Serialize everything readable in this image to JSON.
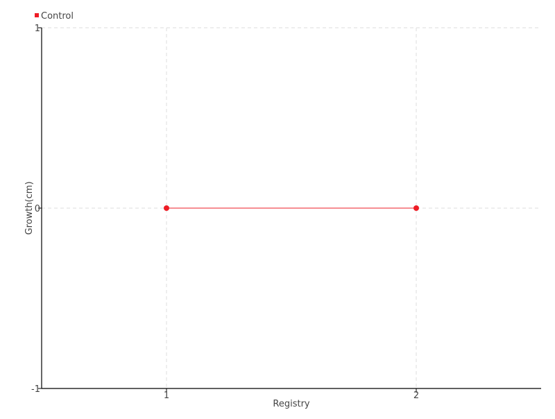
{
  "chart_data": {
    "type": "line",
    "title": "",
    "xlabel": "Registry",
    "ylabel": "Growth(cm)",
    "xlim": [
      0.5,
      2.5
    ],
    "ylim": [
      -1,
      1
    ],
    "x_ticks": [
      1,
      2
    ],
    "y_ticks": [
      -1,
      0,
      1
    ],
    "grid": true,
    "legend_placement": "top-left",
    "series": [
      {
        "name": "Control",
        "color": "#ee1c25",
        "x": [
          1,
          2
        ],
        "y": [
          0,
          0
        ]
      }
    ]
  }
}
